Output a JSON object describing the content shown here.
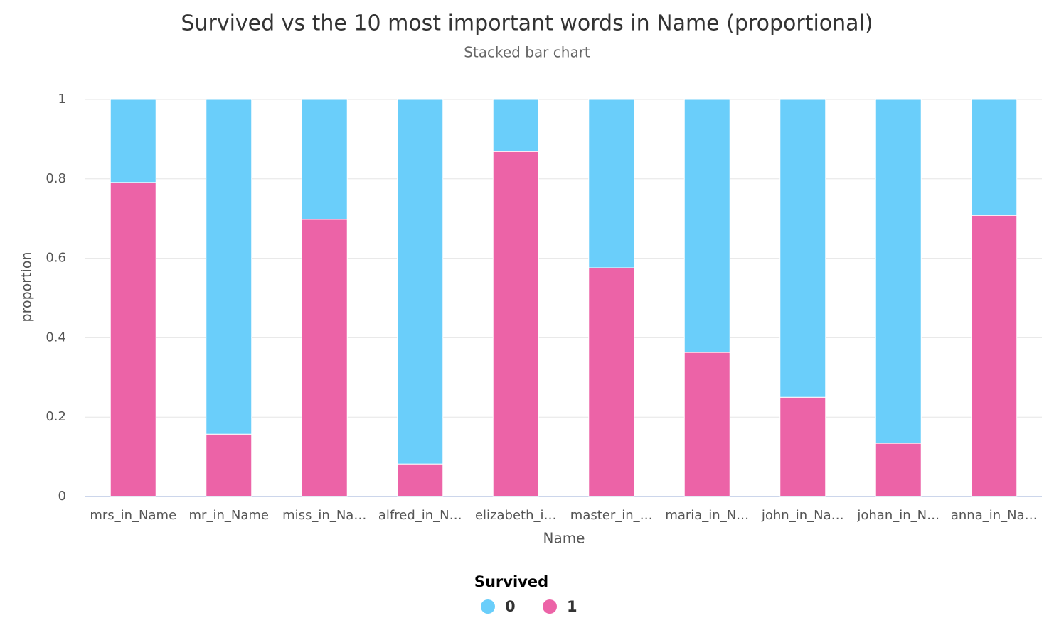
{
  "chart_data": {
    "type": "stacked_bar",
    "title": "Survived vs the 10 most important words in Name (proportional)",
    "subtitle": "Stacked bar chart",
    "x_label": "Name",
    "y_label": "proportion",
    "categories": [
      "mrs_in_Name",
      "mr_in_Name",
      "miss_in_Na…",
      "alfred_in_N…",
      "elizabeth_i…",
      "master_in_…",
      "maria_in_N…",
      "john_in_Na…",
      "johan_in_N…",
      "anna_in_Na…"
    ],
    "series": [
      {
        "name": "0",
        "color": "#6acefa",
        "values": [
          0.209,
          0.843,
          0.302,
          0.918,
          0.131,
          0.424,
          0.637,
          0.75,
          0.866,
          0.292
        ]
      },
      {
        "name": "1",
        "color": "#ec63a7",
        "values": [
          0.791,
          0.157,
          0.698,
          0.082,
          0.869,
          0.576,
          0.363,
          0.25,
          0.134,
          0.708
        ]
      }
    ],
    "legend_title": "Survived",
    "ylim": [
      0,
      1
    ],
    "yticks": [
      0,
      0.2,
      0.4,
      0.6,
      0.8,
      1
    ],
    "grid": true
  }
}
